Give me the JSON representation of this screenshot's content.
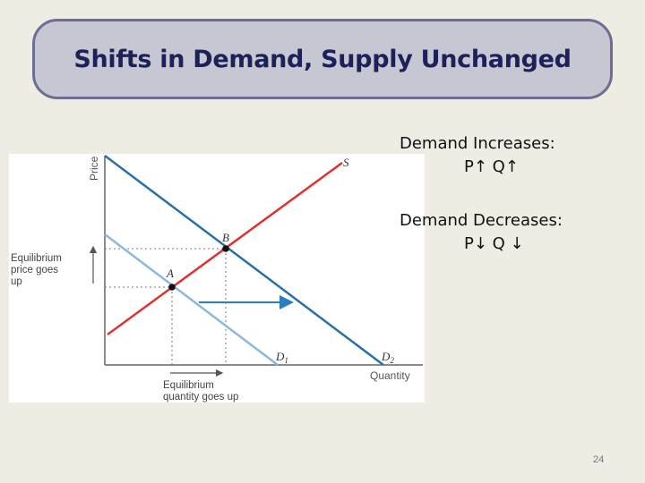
{
  "slide": {
    "title": "Shifts in Demand, Supply Unchanged",
    "number": "24"
  },
  "notes": {
    "increase_heading": "Demand Increases:",
    "increase_effect": "P↑ Q↑",
    "decrease_heading": "Demand Decreases:",
    "decrease_effect": "P↓ Q ↓"
  },
  "diagram": {
    "y_axis_label": "Price",
    "x_axis_label": "Quantity",
    "supply_label": "S",
    "d1_label": "D",
    "d1_subscript": "1",
    "d2_label": "D",
    "d2_subscript": "2",
    "point_a_label": "A",
    "point_b_label": "B",
    "price_note_line1": "Equilibrium",
    "price_note_line2": "price goes",
    "price_note_line3": "up",
    "quantity_note_line1": "Equilibrium",
    "quantity_note_line2": "quantity goes up",
    "colors": {
      "supply": "#e03030",
      "demand_d1": "#8cb8e0",
      "demand_d2": "#2b6fa8",
      "shift_arrow": "#2b7fc0",
      "axis": "#666666"
    }
  }
}
